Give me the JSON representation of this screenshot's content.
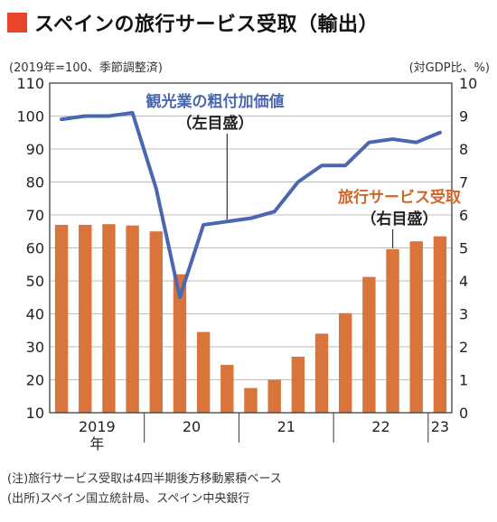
{
  "title": "スペインの旅行サービス受取（輸出）",
  "colors": {
    "title_square": "#e8452a",
    "bar": "#d9743a",
    "line": "#4a68b0",
    "label_bar": "#d0652a",
    "label_line": "#4a68b0"
  },
  "chart_data": {
    "type": "bar+line",
    "unit_left": "(2019年=100、季節調整済)",
    "unit_right": "(対GDP比、%)",
    "left_axis": {
      "min": 10,
      "max": 110,
      "ticks": [
        "110",
        "100",
        "90",
        "80",
        "70",
        "60",
        "50",
        "40",
        "30",
        "20",
        "10"
      ]
    },
    "right_axis": {
      "min": 0,
      "max": 10,
      "ticks": [
        "10",
        "9",
        "8",
        "7",
        "6",
        "5",
        "4",
        "3",
        "2",
        "1",
        "0"
      ]
    },
    "quarters": [
      "2019Q1",
      "2019Q2",
      "2019Q3",
      "2019Q4",
      "2020Q1",
      "2020Q2",
      "2020Q3",
      "2020Q4",
      "2021Q1",
      "2021Q2",
      "2021Q3",
      "2021Q4",
      "2022Q1",
      "2022Q2",
      "2022Q3",
      "2022Q4",
      "2023Q1"
    ],
    "x_groups": [
      {
        "label": "2019",
        "sub": "年",
        "start": 0,
        "end": 3
      },
      {
        "label": "20",
        "start": 4,
        "end": 7
      },
      {
        "label": "21",
        "start": 8,
        "end": 11
      },
      {
        "label": "22",
        "start": 12,
        "end": 15
      },
      {
        "label": "23",
        "start": 16,
        "end": 16
      }
    ],
    "series": [
      {
        "name": "旅行サービス受取",
        "name_sub": "（右目盛）",
        "kind": "bar",
        "axis": "right",
        "values": [
          5.7,
          5.7,
          5.72,
          5.68,
          5.5,
          4.2,
          2.45,
          1.45,
          0.75,
          1.0,
          1.7,
          2.4,
          3.02,
          4.12,
          4.96,
          5.2,
          5.35
        ]
      },
      {
        "name": "観光業の粗付加価値",
        "name_sub": "（左目盛）",
        "kind": "line",
        "axis": "left",
        "values": [
          99,
          100,
          100,
          101,
          78,
          45,
          67,
          68,
          69,
          71,
          80,
          85,
          85,
          92,
          93,
          92,
          95
        ]
      }
    ]
  },
  "notes": [
    "(注)旅行サービス受取は4四半期後方移動累積ベース",
    "(出所)スペイン国立統計局、スペイン中央銀行"
  ]
}
